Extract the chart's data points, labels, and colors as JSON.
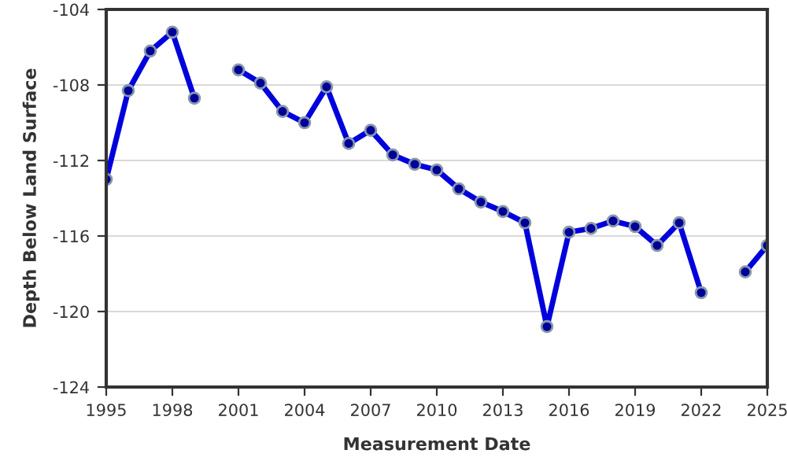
{
  "chart_data": {
    "type": "line",
    "xlabel": "Measurement Date",
    "ylabel": "Depth Below Land Surface",
    "x": [
      1995,
      1996,
      1997,
      1998,
      1999,
      2000,
      2001,
      2002,
      2003,
      2004,
      2005,
      2006,
      2007,
      2008,
      2009,
      2010,
      2011,
      2012,
      2013,
      2014,
      2015,
      2016,
      2017,
      2018,
      2019,
      2020,
      2021,
      2022,
      2023,
      2024,
      2025
    ],
    "series": [
      {
        "color": "#0000dd",
        "values": [
          -113.0,
          -108.3,
          -106.2,
          -105.2,
          -108.7,
          null,
          -107.2,
          -107.9,
          -109.4,
          -110.0,
          -108.1,
          -111.1,
          -110.4,
          -111.7,
          -112.2,
          -112.5,
          -113.5,
          -114.2,
          -114.7,
          -115.3,
          -120.8,
          -115.8,
          -115.6,
          -115.2,
          -115.5,
          -116.5,
          -115.3,
          -119.0,
          null,
          -117.9,
          -116.5
        ]
      }
    ],
    "xlim": [
      1995,
      2025
    ],
    "xticks": [
      1995,
      1998,
      2001,
      2004,
      2007,
      2010,
      2013,
      2016,
      2019,
      2022,
      2025
    ],
    "ylim": [
      -124,
      -104
    ],
    "yticks": [
      -124,
      -120,
      -116,
      -112,
      -108,
      -104
    ],
    "grid": "y",
    "marker": "circle",
    "line_style": "solid",
    "legend": false
  }
}
